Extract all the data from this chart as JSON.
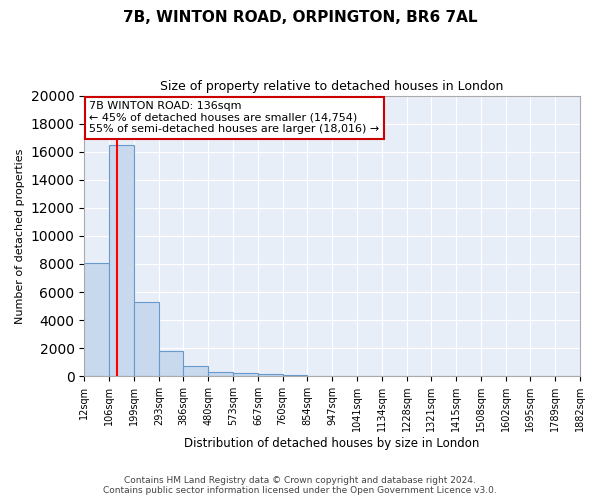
{
  "title1": "7B, WINTON ROAD, ORPINGTON, BR6 7AL",
  "title2": "Size of property relative to detached houses in London",
  "xlabel": "Distribution of detached houses by size in London",
  "ylabel": "Number of detached properties",
  "bin_edges": [
    12,
    106,
    199,
    293,
    386,
    480,
    573,
    667,
    760,
    854,
    947,
    1041,
    1134,
    1228,
    1321,
    1415,
    1508,
    1602,
    1695,
    1789,
    1882
  ],
  "bar_heights": [
    8100,
    16500,
    5300,
    1800,
    700,
    300,
    200,
    130,
    100,
    0,
    0,
    0,
    0,
    0,
    0,
    0,
    0,
    0,
    0,
    0
  ],
  "bar_color": "#c8d9ee",
  "bar_edge_color": "#6699cc",
  "background_color": "#e8eef8",
  "grid_color": "#ffffff",
  "red_line_x": 136,
  "annotation_title": "7B WINTON ROAD: 136sqm",
  "annotation_line1": "← 45% of detached houses are smaller (14,754)",
  "annotation_line2": "55% of semi-detached houses are larger (18,016) →",
  "annotation_box_color": "#ffffff",
  "annotation_box_edge": "#cc0000",
  "footnote1": "Contains HM Land Registry data © Crown copyright and database right 2024.",
  "footnote2": "Contains public sector information licensed under the Open Government Licence v3.0.",
  "ylim": [
    0,
    20000
  ],
  "yticks": [
    0,
    2000,
    4000,
    6000,
    8000,
    10000,
    12000,
    14000,
    16000,
    18000,
    20000
  ]
}
